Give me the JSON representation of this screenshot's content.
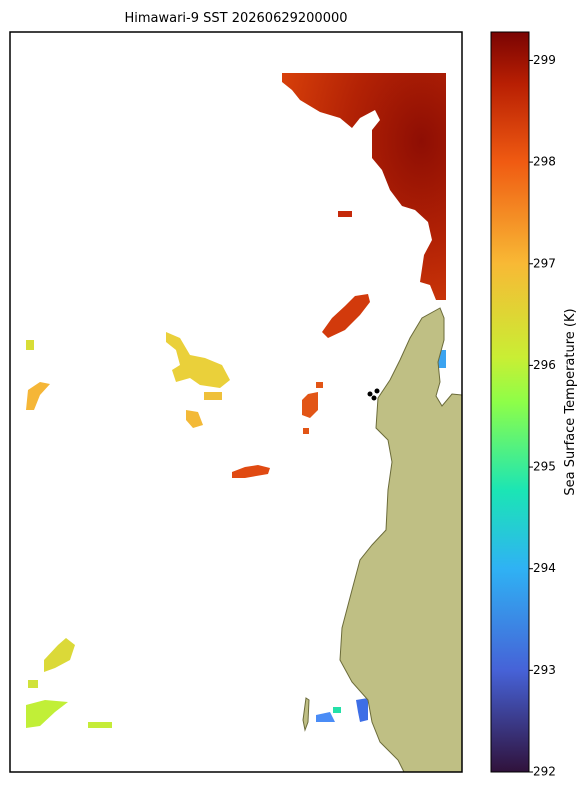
{
  "map": {
    "title": "Himawari-9 SST 20260629200000",
    "colorbar": {
      "label": "Sea Surface Temperature (K)",
      "lim": [
        292,
        299.28
      ],
      "ticks": [
        292,
        293,
        294,
        295,
        296,
        297,
        298,
        299
      ]
    }
  }
}
